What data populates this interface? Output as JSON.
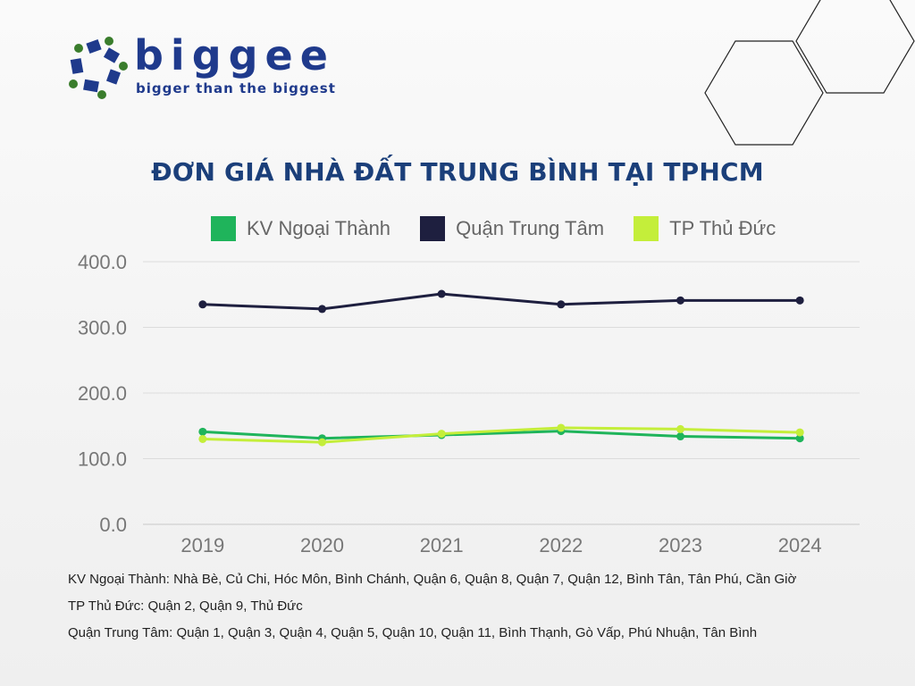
{
  "logo": {
    "wordmark": "biggee",
    "tagline": "bigger than the biggest",
    "color": "#1f3a8c",
    "dot_color": "#3a7d2c"
  },
  "chart_data": {
    "type": "line",
    "title": "ĐƠN GIÁ NHÀ ĐẤT TRUNG BÌNH TẠI TPHCM",
    "categories": [
      "2019",
      "2020",
      "2021",
      "2022",
      "2023",
      "2024"
    ],
    "y_ticks": [
      "0.0",
      "100.0",
      "200.0",
      "300.0",
      "400.0"
    ],
    "ylim": [
      0,
      400
    ],
    "grid": true,
    "legend_position": "top",
    "series": [
      {
        "name": "KV Ngoại Thành",
        "color": "#1fb45b",
        "values": [
          141,
          131,
          136,
          142,
          134,
          131
        ]
      },
      {
        "name": "Quận Trung Tâm",
        "color": "#1e1f3f",
        "values": [
          335,
          328,
          351,
          335,
          341,
          341
        ]
      },
      {
        "name": "TP Thủ Đức",
        "color": "#c4ee3a",
        "values": [
          130,
          125,
          138,
          147,
          145,
          140
        ]
      }
    ]
  },
  "notes": [
    "KV Ngoại Thành: Nhà Bè, Củ Chi, Hóc Môn, Bình Chánh, Quận 6, Quận 8, Quận 7, Quận 12, Bình Tân, Tân Phú, Cần Giờ",
    "TP Thủ Đức: Quận 2, Quận 9, Thủ Đức",
    "Quận Trung Tâm: Quận 1, Quận 3, Quận 4, Quận 5, Quận 10, Quận 11, Bình Thạnh, Gò Vấp, Phú Nhuận, Tân Bình"
  ]
}
